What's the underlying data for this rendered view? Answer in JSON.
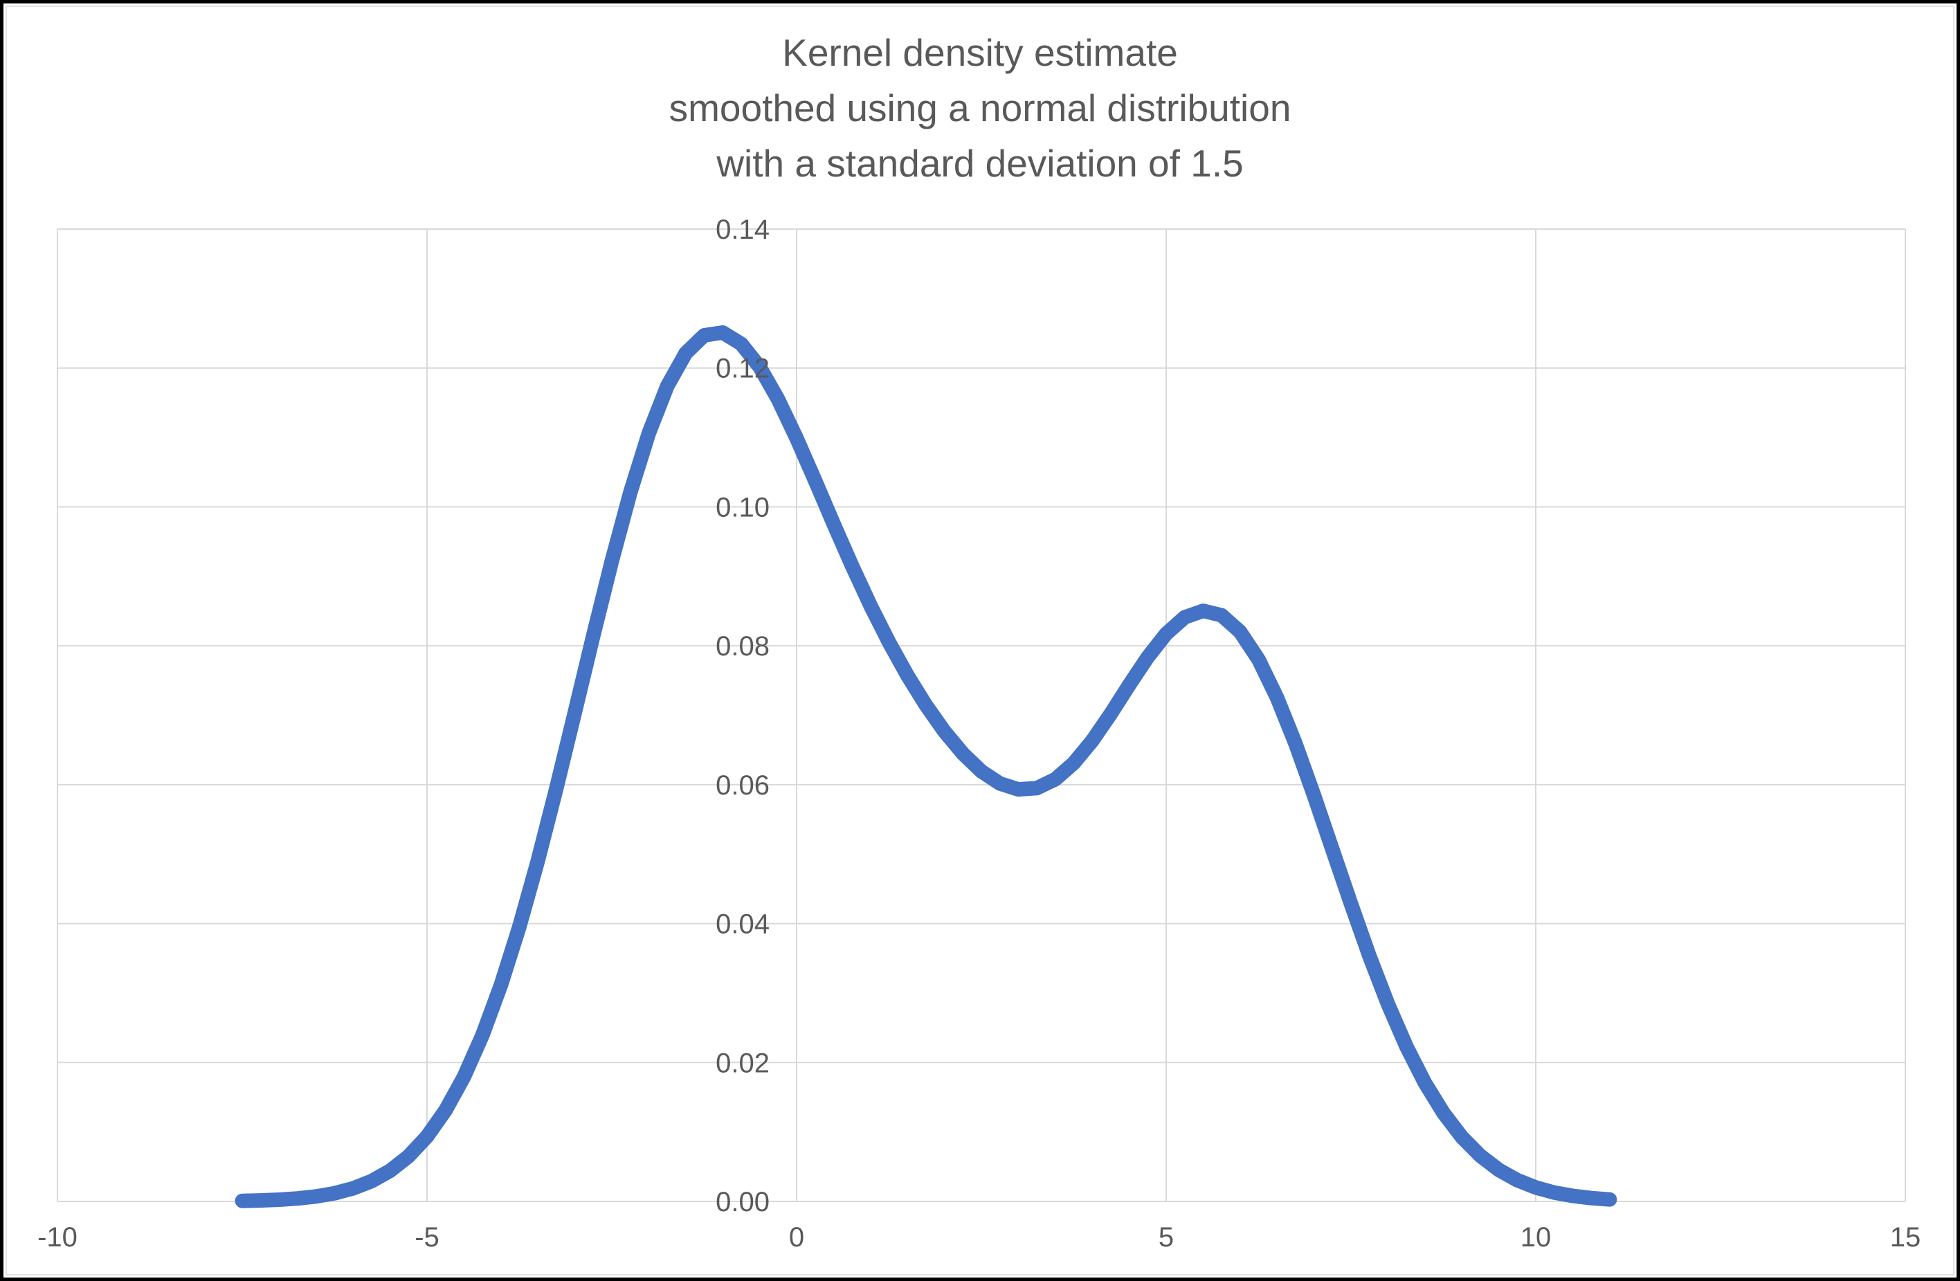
{
  "chart_data": {
    "type": "line",
    "title": "Kernel density estimate\nsmoothed using a normal distribution\nwith a standard deviation of 1.5",
    "title_lines": [
      "Kernel density estimate",
      "smoothed using a normal distribution",
      "with a standard deviation of 1.5"
    ],
    "xlabel": "",
    "ylabel": "",
    "xlim": [
      -10,
      15
    ],
    "ylim": [
      0,
      0.14
    ],
    "grid": true,
    "legend": "none",
    "x_ticks": {
      "values": [
        -10,
        -5,
        0,
        5,
        10,
        15
      ],
      "labels": [
        "-10",
        "-5",
        "0",
        "5",
        "10",
        "15"
      ]
    },
    "y_ticks": {
      "values": [
        0,
        0.02,
        0.04,
        0.06,
        0.08,
        0.1,
        0.12,
        0.14
      ],
      "labels": [
        "0.00",
        "0.02",
        "0.04",
        "0.06",
        "0.08",
        "0.10",
        "0.12",
        "0.14"
      ]
    },
    "colors": {
      "series": "#4472C4",
      "gridline": "#D9D9D9",
      "text": "#595959",
      "frame": "#000000",
      "chart_border": "#E2E2E2",
      "background": "#FFFFFF"
    },
    "series": [
      {
        "name": "kernel density estimate",
        "color": "#4472C4",
        "stroke_width": 21,
        "x": [
          -7.5,
          -7.25,
          -7,
          -6.75,
          -6.5,
          -6.25,
          -6,
          -5.75,
          -5.5,
          -5.25,
          -5,
          -4.75,
          -4.5,
          -4.25,
          -4,
          -3.75,
          -3.5,
          -3.25,
          -3,
          -2.75,
          -2.5,
          -2.25,
          -2,
          -1.75,
          -1.5,
          -1.25,
          -1,
          -0.75,
          -0.5,
          -0.25,
          0,
          0.25,
          0.5,
          0.75,
          1,
          1.25,
          1.5,
          1.75,
          2,
          2.25,
          2.5,
          2.75,
          3,
          3.25,
          3.5,
          3.75,
          4,
          4.25,
          4.5,
          4.75,
          5,
          5.25,
          5.5,
          5.75,
          6,
          6.25,
          6.5,
          6.75,
          7,
          7.25,
          7.5,
          7.75,
          8,
          8.25,
          8.5,
          8.75,
          9,
          9.25,
          9.5,
          9.75,
          10,
          10.25,
          10.5,
          10.75,
          11
        ],
        "y": [
          8e-05,
          0.00014,
          0.00025,
          0.00043,
          0.00072,
          0.00118,
          0.00188,
          0.00292,
          0.00441,
          0.00651,
          0.00935,
          0.01312,
          0.01795,
          0.02394,
          0.03116,
          0.03958,
          0.04908,
          0.05949,
          0.07043,
          0.0815,
          0.0922,
          0.10206,
          0.11059,
          0.11738,
          0.12213,
          0.1247,
          0.1251,
          0.12348,
          0.12015,
          0.11548,
          0.10988,
          0.1038,
          0.09757,
          0.09152,
          0.08578,
          0.08051,
          0.07572,
          0.07144,
          0.06767,
          0.06448,
          0.06193,
          0.06018,
          0.05933,
          0.05951,
          0.06078,
          0.06311,
          0.06633,
          0.0702,
          0.07436,
          0.07835,
          0.08173,
          0.0841,
          0.08504,
          0.08439,
          0.08202,
          0.07801,
          0.07252,
          0.06589,
          0.05846,
          0.05064,
          0.04286,
          0.03532,
          0.02843,
          0.02231,
          0.01708,
          0.01275,
          0.00927,
          0.00658,
          0.00454,
          0.00306,
          0.002,
          0.00128,
          0.0008,
          0.00048,
          0.00028
        ]
      }
    ]
  }
}
